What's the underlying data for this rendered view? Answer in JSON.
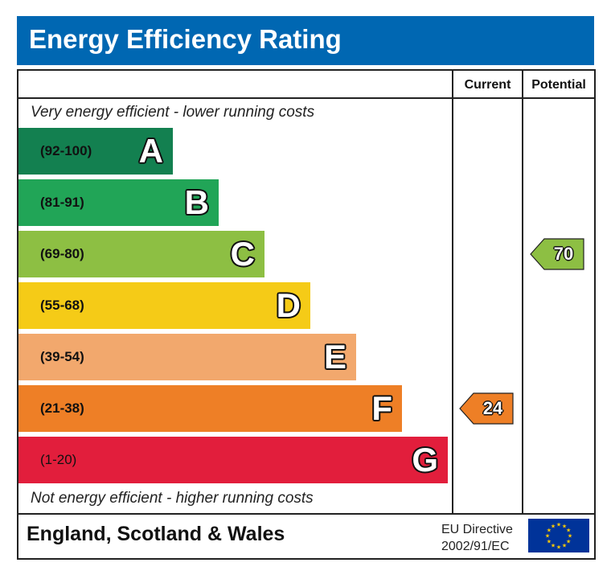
{
  "header": {
    "title": "Energy Efficiency Rating"
  },
  "columns": {
    "current": "Current",
    "potential": "Potential"
  },
  "captions": {
    "top": "Very energy efficient - lower running costs",
    "bottom": "Not energy efficient - higher running costs"
  },
  "footer": {
    "country": "England, Scotland & Wales",
    "directive_line1": "EU Directive",
    "directive_line2": "2002/91/EC"
  },
  "chart_data": {
    "type": "bar",
    "title": "Energy Efficiency Rating",
    "bands": [
      {
        "letter": "A",
        "range": "(92-100)",
        "min": 92,
        "max": 100,
        "color": "#138050"
      },
      {
        "letter": "B",
        "range": "(81-91)",
        "min": 81,
        "max": 91,
        "color": "#21a557"
      },
      {
        "letter": "C",
        "range": "(69-80)",
        "min": 69,
        "max": 80,
        "color": "#8dbf43"
      },
      {
        "letter": "D",
        "range": "(55-68)",
        "min": 55,
        "max": 68,
        "color": "#f5cb17"
      },
      {
        "letter": "E",
        "range": "(39-54)",
        "min": 39,
        "max": 54,
        "color": "#f2a86d"
      },
      {
        "letter": "F",
        "range": "(21-38)",
        "min": 21,
        "max": 38,
        "color": "#ee7f26"
      },
      {
        "letter": "G",
        "range": "(1-20)",
        "min": 1,
        "max": 20,
        "color": "#e21e3c"
      }
    ],
    "current": {
      "value": 24,
      "band": "F",
      "color": "#ee7f26"
    },
    "potential": {
      "value": 70,
      "band": "C",
      "color": "#8dbf43"
    }
  }
}
